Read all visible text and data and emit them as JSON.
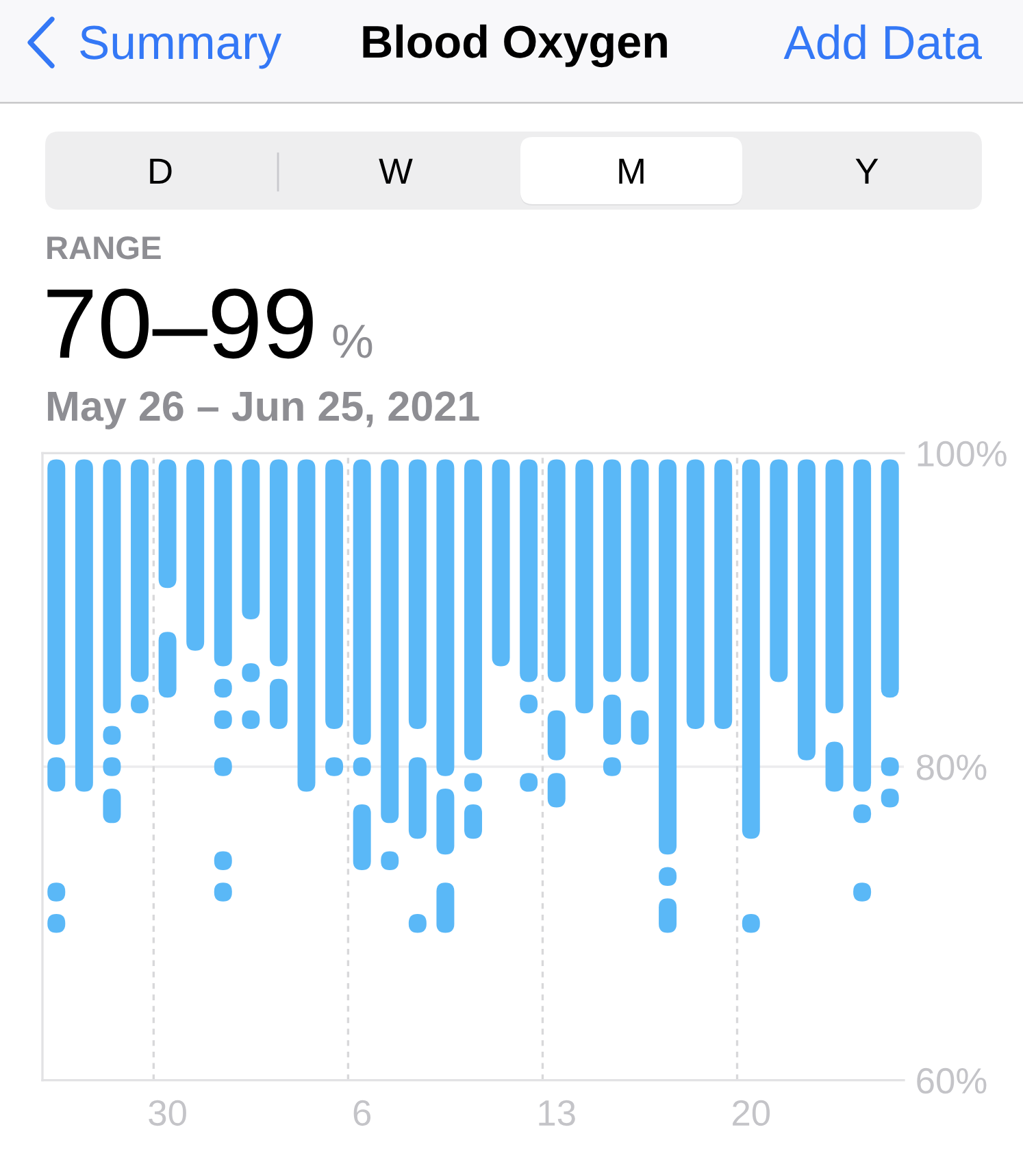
{
  "chart_data": {
    "type": "bar",
    "title": "Blood Oxygen",
    "subtitle": "May 26 – Jun 25, 2021",
    "annotations": [
      "Summary",
      "Add Data",
      "D",
      "W",
      "M",
      "Y",
      "RANGE",
      "70–99",
      "%"
    ],
    "categories": [
      null,
      null,
      null,
      null,
      "30",
      null,
      null,
      null,
      null,
      null,
      null,
      "6",
      null,
      null,
      null,
      null,
      null,
      null,
      "13",
      null,
      null,
      null,
      null,
      null,
      null,
      "20",
      null,
      null,
      null,
      null,
      null
    ],
    "ylim": [
      60,
      100
    ],
    "yticks": [
      {
        "value": 60,
        "label": "60%"
      },
      {
        "value": 80,
        "label": "80%"
      },
      {
        "value": 100,
        "label": "100%"
      }
    ],
    "ref_lines": [
      {
        "axis": "y",
        "value": 80,
        "color": "#ececee"
      }
    ],
    "series": [
      {
        "color": "#5ab8f7",
        "base": [
          81.4,
          78.4,
          83.4,
          85.4,
          91.4,
          87.4,
          86.4,
          89.4,
          86.4,
          78.4,
          82.4,
          81.4,
          76.4,
          82.4,
          79.4,
          80.4,
          86.4,
          85.4,
          85.4,
          83.4,
          85.4,
          85.4,
          74.4,
          82.4,
          82.4,
          75.4,
          85.4,
          80.4,
          83.4,
          78.4,
          84.4
        ],
        "values": [
          18.2,
          21.2,
          16.2,
          14.2,
          8.2,
          12.2,
          13.2,
          10.2,
          13.2,
          21.2,
          17.2,
          18.2,
          23.2,
          17.2,
          20.2,
          19.2,
          13.2,
          14.2,
          14.2,
          16.2,
          14.2,
          14.2,
          25.2,
          17.2,
          17.2,
          24.2,
          14.2,
          19.2,
          16.2,
          21.2,
          15.2
        ]
      },
      {
        "color": "#5ab8f7",
        "base": [
          78.4,
          null,
          81.4,
          83.4,
          84.4,
          null,
          84.4,
          85.4,
          82.4,
          null,
          79.4,
          79.4,
          73.4,
          75.4,
          74.4,
          78.4,
          null,
          83.4,
          80.4,
          null,
          81.4,
          81.4,
          72.4,
          null,
          null,
          69.4,
          null,
          null,
          78.4,
          76.4,
          79.4
        ],
        "values": [
          2.2,
          null,
          1.2,
          1.2,
          4.2,
          null,
          1.2,
          1.2,
          3.2,
          null,
          1.2,
          1.2,
          1.2,
          5.2,
          4.2,
          1.2,
          null,
          1.2,
          3.2,
          null,
          3.2,
          2.2,
          1.2,
          null,
          null,
          1.2,
          null,
          null,
          3.2,
          1.2,
          1.2
        ]
      },
      {
        "color": "#5ab8f7",
        "base": [
          71.4,
          null,
          79.4,
          null,
          null,
          null,
          82.4,
          82.4,
          null,
          null,
          null,
          73.4,
          null,
          69.4,
          69.4,
          75.4,
          null,
          78.4,
          77.4,
          null,
          79.4,
          null,
          69.4,
          null,
          null,
          null,
          null,
          null,
          null,
          71.4,
          77.4
        ],
        "values": [
          1.2,
          null,
          1.2,
          null,
          null,
          null,
          1.2,
          1.2,
          null,
          null,
          null,
          4.2,
          null,
          1.2,
          3.2,
          2.2,
          null,
          1.2,
          2.2,
          null,
          1.2,
          null,
          2.2,
          null,
          null,
          null,
          null,
          null,
          null,
          1.2,
          1.2
        ]
      },
      {
        "color": "#5ab8f7",
        "base": [
          69.4,
          null,
          76.4,
          null,
          null,
          null,
          79.4,
          null,
          null,
          null,
          null,
          null,
          null,
          null,
          null,
          null,
          null,
          null,
          null,
          null,
          null,
          null,
          null,
          null,
          null,
          null,
          null,
          null,
          null,
          null,
          null
        ],
        "values": [
          1.2,
          null,
          2.2,
          null,
          null,
          null,
          1.2,
          null,
          null,
          null,
          null,
          null,
          null,
          null,
          null,
          null,
          null,
          null,
          null,
          null,
          null,
          null,
          null,
          null,
          null,
          null,
          null,
          null,
          null,
          null,
          null
        ]
      },
      {
        "color": "#5ab8f7",
        "base": [
          null,
          null,
          null,
          null,
          null,
          null,
          73.4,
          null,
          null,
          null,
          null,
          null,
          null,
          null,
          null,
          null,
          null,
          null,
          null,
          null,
          null,
          null,
          null,
          null,
          null,
          null,
          null,
          null,
          null,
          null,
          null
        ],
        "values": [
          null,
          null,
          null,
          null,
          null,
          null,
          1.2,
          null,
          null,
          null,
          null,
          null,
          null,
          null,
          null,
          null,
          null,
          null,
          null,
          null,
          null,
          null,
          null,
          null,
          null,
          null,
          null,
          null,
          null,
          null,
          null
        ]
      },
      {
        "color": "#5ab8f7",
        "base": [
          null,
          null,
          null,
          null,
          null,
          null,
          71.4,
          null,
          null,
          null,
          null,
          null,
          null,
          null,
          null,
          null,
          null,
          null,
          null,
          null,
          null,
          null,
          null,
          null,
          null,
          null,
          null,
          null,
          null,
          null,
          null
        ],
        "values": [
          null,
          null,
          null,
          null,
          null,
          null,
          1.2,
          null,
          null,
          null,
          null,
          null,
          null,
          null,
          null,
          null,
          null,
          null,
          null,
          null,
          null,
          null,
          null,
          null,
          null,
          null,
          null,
          null,
          null,
          null,
          null
        ]
      }
    ]
  }
}
